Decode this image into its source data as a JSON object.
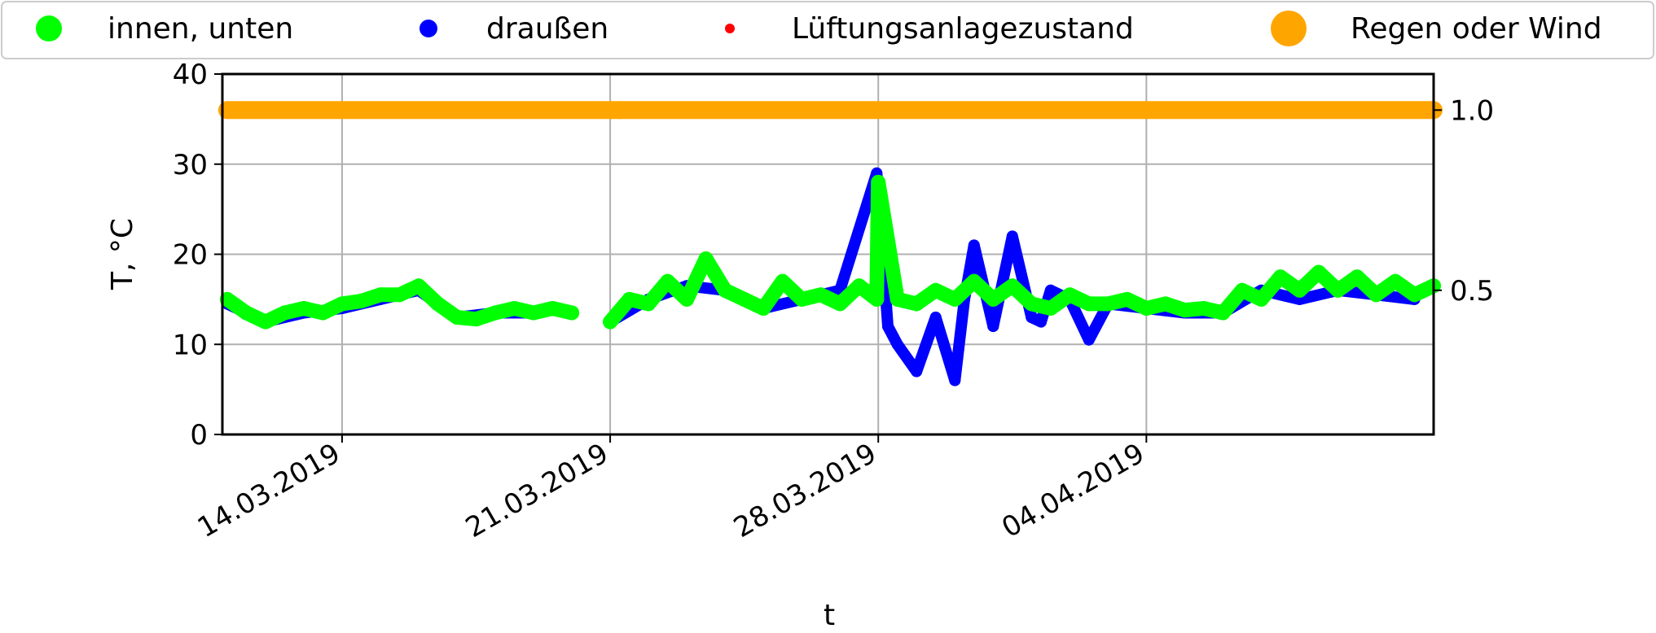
{
  "chart_data": {
    "type": "scatter",
    "xlabel": "t",
    "ylabel": "T, °C",
    "x_type": "date",
    "xlim": [
      "2019-03-10T21:00",
      "2019-04-11T12:00"
    ],
    "x_ticks": [
      "2019-03-14",
      "2019-03-21",
      "2019-03-28",
      "2019-04-04"
    ],
    "x_tick_labels": [
      "14.03.2019",
      "21.03.2019",
      "28.03.2019",
      "04.04.2019"
    ],
    "ylim": [
      0,
      40
    ],
    "y_ticks": [
      0,
      10,
      20,
      30,
      40
    ],
    "y_tick_labels": [
      "0",
      "10",
      "20",
      "30",
      "40"
    ],
    "y2lim": [
      0.1,
      1.1
    ],
    "y2_ticks": [
      0.5,
      1.0
    ],
    "y2_tick_labels": [
      "0.5",
      "1.0"
    ],
    "grid": true,
    "legend_position": "top",
    "series": [
      {
        "name": "innen, unten",
        "color": "#00ff00",
        "axis": "left",
        "x": [
          "2019-03-11T00:00",
          "2019-03-11T12:00",
          "2019-03-12T00:00",
          "2019-03-12T12:00",
          "2019-03-13T00:00",
          "2019-03-13T12:00",
          "2019-03-14T00:00",
          "2019-03-14T12:00",
          "2019-03-15T00:00",
          "2019-03-15T12:00",
          "2019-03-16T00:00",
          "2019-03-16T12:00",
          "2019-03-17T00:00",
          "2019-03-17T12:00",
          "2019-03-18T00:00",
          "2019-03-18T12:00",
          "2019-03-19T00:00",
          "2019-03-19T12:00",
          "2019-03-20T00:00",
          "2019-03-20T12:00",
          "2019-03-21T00:00",
          "2019-03-21T12:00",
          "2019-03-22T00:00",
          "2019-03-22T12:00",
          "2019-03-23T00:00",
          "2019-03-23T12:00",
          "2019-03-24T00:00",
          "2019-03-24T12:00",
          "2019-03-25T00:00",
          "2019-03-25T12:00",
          "2019-03-26T00:00",
          "2019-03-26T12:00",
          "2019-03-27T00:00",
          "2019-03-27T12:00",
          "2019-03-27T23:00",
          "2019-03-28T00:00",
          "2019-03-28T12:00",
          "2019-03-29T00:00",
          "2019-03-29T12:00",
          "2019-03-30T00:00",
          "2019-03-30T12:00",
          "2019-03-31T00:00",
          "2019-03-31T12:00",
          "2019-04-01T00:00",
          "2019-04-01T12:00",
          "2019-04-02T00:00",
          "2019-04-02T12:00",
          "2019-04-03T00:00",
          "2019-04-03T12:00",
          "2019-04-04T00:00",
          "2019-04-04T12:00",
          "2019-04-05T00:00",
          "2019-04-05T12:00",
          "2019-04-06T00:00",
          "2019-04-06T12:00",
          "2019-04-07T00:00",
          "2019-04-07T12:00",
          "2019-04-08T00:00",
          "2019-04-08T12:00",
          "2019-04-09T00:00",
          "2019-04-09T12:00",
          "2019-04-10T00:00",
          "2019-04-10T12:00",
          "2019-04-11T00:00",
          "2019-04-11T12:00"
        ],
        "y": [
          15.0,
          13.5,
          12.5,
          13.5,
          14.0,
          13.5,
          14.5,
          14.8,
          15.5,
          15.5,
          16.5,
          14.5,
          13.0,
          12.8,
          13.5,
          14.0,
          13.5,
          14.0,
          13.5,
          null,
          12.5,
          15.0,
          14.5,
          17.0,
          15.0,
          19.5,
          16.0,
          15.0,
          14.0,
          17.0,
          15.0,
          15.5,
          14.5,
          16.5,
          15.0,
          28.0,
          15.0,
          14.5,
          16.0,
          15.0,
          17.0,
          15.0,
          16.5,
          14.5,
          14.0,
          15.5,
          14.5,
          14.5,
          15.0,
          14.0,
          14.5,
          13.8,
          14.0,
          13.5,
          16.0,
          15.0,
          17.5,
          16.0,
          18.0,
          16.0,
          17.5,
          15.5,
          17.0,
          15.5,
          16.5
        ]
      },
      {
        "name": "draußen",
        "color": "#0000ff",
        "axis": "left",
        "x": [
          "2019-03-11T00:00",
          "2019-03-12T00:00",
          "2019-03-13T00:00",
          "2019-03-14T00:00",
          "2019-03-15T00:00",
          "2019-03-16T00:00",
          "2019-03-17T00:00",
          "2019-03-18T00:00",
          "2019-03-19T00:00",
          "2019-03-20T00:00",
          "2019-03-21T00:00",
          "2019-03-22T00:00",
          "2019-03-23T00:00",
          "2019-03-24T00:00",
          "2019-03-25T00:00",
          "2019-03-26T00:00",
          "2019-03-27T00:00",
          "2019-03-27T23:00",
          "2019-03-28T06:00",
          "2019-03-28T12:00",
          "2019-03-29T00:00",
          "2019-03-29T12:00",
          "2019-03-30T00:00",
          "2019-03-30T06:00",
          "2019-03-30T12:00",
          "2019-03-31T00:00",
          "2019-03-31T12:00",
          "2019-04-01T00:00",
          "2019-04-01T06:00",
          "2019-04-01T12:00",
          "2019-04-02T00:00",
          "2019-04-02T12:00",
          "2019-04-03T00:00",
          "2019-04-04T00:00",
          "2019-04-05T00:00",
          "2019-04-06T00:00",
          "2019-04-07T00:00",
          "2019-04-08T00:00",
          "2019-04-09T00:00",
          "2019-04-10T00:00",
          "2019-04-11T00:00"
        ],
        "y": [
          14.5,
          12.5,
          13.5,
          14.0,
          15.0,
          16.0,
          13.0,
          13.5,
          13.5,
          null,
          12.5,
          15.0,
          16.5,
          16.0,
          14.0,
          15.0,
          16.0,
          29.0,
          12.0,
          10.0,
          7.0,
          13.0,
          6.0,
          15.0,
          21.0,
          12.0,
          22.0,
          13.0,
          12.5,
          16.0,
          15.0,
          10.5,
          14.5,
          14.0,
          13.5,
          13.5,
          16.0,
          15.0,
          16.0,
          15.5,
          15.0
        ]
      },
      {
        "name": "Lüftungsanlagezustand",
        "color": "#ff0000",
        "axis": "right",
        "x": [],
        "y": []
      },
      {
        "name": "Regen oder Wind",
        "color": "#ffa500",
        "axis": "right",
        "x": [
          "2019-03-11T00:00",
          "2019-03-21T00:00",
          "2019-03-21T06:00",
          "2019-04-11T12:00"
        ],
        "y": [
          1.0,
          1.0,
          1.0,
          1.0
        ]
      }
    ]
  }
}
